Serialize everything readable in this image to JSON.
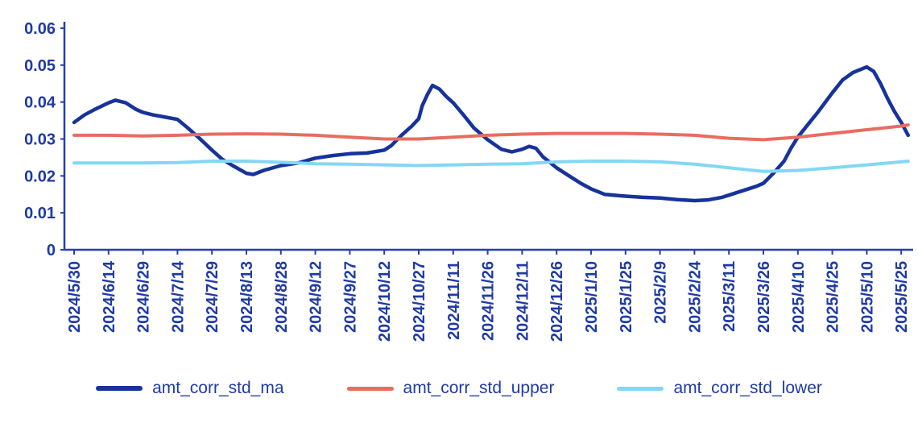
{
  "chart_data": {
    "type": "line",
    "title": "",
    "grid": false,
    "legend_position": "bottom",
    "axis_color": "#2440ad",
    "label_color": "#1f3aa6",
    "ylim": [
      0,
      0.06
    ],
    "y_ticks": [
      "0",
      "0.01",
      "0.02",
      "0.03",
      "0.04",
      "0.05",
      "0.06"
    ],
    "x_tick_labels": [
      "2024/5/30",
      "2024/6/14",
      "2024/6/29",
      "2024/7/14",
      "2024/7/29",
      "2024/8/13",
      "2024/8/28",
      "2024/9/12",
      "2024/9/27",
      "2024/10/12",
      "2024/10/27",
      "2024/11/11",
      "2024/11/26",
      "2024/12/11",
      "2024/12/26",
      "2025/1/10",
      "2025/1/25",
      "2025/2/9",
      "2025/2/24",
      "2025/3/11",
      "2025/3/26",
      "2025/4/10",
      "2025/4/25",
      "2025/5/10",
      "2025/5/25"
    ],
    "series": [
      {
        "name": "amt_corr_std_ma",
        "color": "#17339b",
        "width": 4.5,
        "points": [
          [
            0,
            0.0345
          ],
          [
            0.3,
            0.0365
          ],
          [
            0.6,
            0.038
          ],
          [
            1,
            0.0398
          ],
          [
            1.2,
            0.0405
          ],
          [
            1.5,
            0.0398
          ],
          [
            1.8,
            0.038
          ],
          [
            2,
            0.0372
          ],
          [
            2.3,
            0.0365
          ],
          [
            2.6,
            0.036
          ],
          [
            3,
            0.0353
          ],
          [
            3.3,
            0.033
          ],
          [
            3.6,
            0.0305
          ],
          [
            4,
            0.027
          ],
          [
            4.3,
            0.0245
          ],
          [
            4.6,
            0.0228
          ],
          [
            5,
            0.0207
          ],
          [
            5.2,
            0.0204
          ],
          [
            5.5,
            0.0215
          ],
          [
            6,
            0.0228
          ],
          [
            6.5,
            0.0235
          ],
          [
            7,
            0.0248
          ],
          [
            7.5,
            0.0255
          ],
          [
            8,
            0.026
          ],
          [
            8.5,
            0.0262
          ],
          [
            9,
            0.027
          ],
          [
            9.2,
            0.0282
          ],
          [
            9.5,
            0.031
          ],
          [
            9.8,
            0.0335
          ],
          [
            10,
            0.0355
          ],
          [
            10.1,
            0.039
          ],
          [
            10.25,
            0.042
          ],
          [
            10.4,
            0.0445
          ],
          [
            10.6,
            0.0435
          ],
          [
            10.8,
            0.0415
          ],
          [
            11,
            0.0398
          ],
          [
            11.3,
            0.0365
          ],
          [
            11.6,
            0.033
          ],
          [
            12,
            0.0298
          ],
          [
            12.4,
            0.0272
          ],
          [
            12.7,
            0.0265
          ],
          [
            13,
            0.0272
          ],
          [
            13.2,
            0.028
          ],
          [
            13.4,
            0.0275
          ],
          [
            13.6,
            0.0252
          ],
          [
            14,
            0.0222
          ],
          [
            14.4,
            0.0198
          ],
          [
            14.7,
            0.018
          ],
          [
            15,
            0.0165
          ],
          [
            15.4,
            0.015
          ],
          [
            16,
            0.0145
          ],
          [
            16.5,
            0.0142
          ],
          [
            17,
            0.014
          ],
          [
            17.5,
            0.0136
          ],
          [
            18,
            0.0133
          ],
          [
            18.4,
            0.0135
          ],
          [
            18.8,
            0.0142
          ],
          [
            19,
            0.0148
          ],
          [
            19.4,
            0.016
          ],
          [
            19.8,
            0.0172
          ],
          [
            20,
            0.018
          ],
          [
            20.3,
            0.0208
          ],
          [
            20.6,
            0.024
          ],
          [
            20.8,
            0.0275
          ],
          [
            21,
            0.0305
          ],
          [
            21.3,
            0.034
          ],
          [
            21.6,
            0.0375
          ],
          [
            22,
            0.0425
          ],
          [
            22.3,
            0.046
          ],
          [
            22.6,
            0.048
          ],
          [
            23,
            0.0495
          ],
          [
            23.2,
            0.0483
          ],
          [
            23.4,
            0.045
          ],
          [
            23.6,
            0.041
          ],
          [
            23.8,
            0.0375
          ],
          [
            24,
            0.0345
          ],
          [
            24.2,
            0.031
          ]
        ]
      },
      {
        "name": "amt_corr_std_upper",
        "color": "#e96c60",
        "width": 4,
        "points": [
          [
            0,
            0.031
          ],
          [
            1,
            0.031
          ],
          [
            2,
            0.0308
          ],
          [
            3,
            0.031
          ],
          [
            4,
            0.0313
          ],
          [
            5,
            0.0314
          ],
          [
            6,
            0.0313
          ],
          [
            7,
            0.031
          ],
          [
            8,
            0.0305
          ],
          [
            9,
            0.03
          ],
          [
            10,
            0.03
          ],
          [
            11,
            0.0305
          ],
          [
            12,
            0.031
          ],
          [
            13,
            0.0313
          ],
          [
            14,
            0.0315
          ],
          [
            15,
            0.0315
          ],
          [
            16,
            0.0315
          ],
          [
            17,
            0.0313
          ],
          [
            18,
            0.031
          ],
          [
            19,
            0.0302
          ],
          [
            20,
            0.0298
          ],
          [
            21,
            0.0305
          ],
          [
            22,
            0.0315
          ],
          [
            23,
            0.0325
          ],
          [
            24,
            0.0335
          ],
          [
            24.2,
            0.0338
          ]
        ]
      },
      {
        "name": "amt_corr_std_lower",
        "color": "#83d7f5",
        "width": 4,
        "points": [
          [
            0,
            0.0235
          ],
          [
            1,
            0.0235
          ],
          [
            2,
            0.0235
          ],
          [
            3,
            0.0236
          ],
          [
            4,
            0.024
          ],
          [
            5,
            0.024
          ],
          [
            6,
            0.0237
          ],
          [
            7,
            0.0233
          ],
          [
            8,
            0.0232
          ],
          [
            9,
            0.023
          ],
          [
            10,
            0.0228
          ],
          [
            11,
            0.023
          ],
          [
            12,
            0.0232
          ],
          [
            13,
            0.0233
          ],
          [
            14,
            0.0238
          ],
          [
            15,
            0.024
          ],
          [
            16,
            0.024
          ],
          [
            17,
            0.0238
          ],
          [
            18,
            0.0232
          ],
          [
            19,
            0.0222
          ],
          [
            20,
            0.0212
          ],
          [
            21,
            0.0215
          ],
          [
            22,
            0.0222
          ],
          [
            23,
            0.023
          ],
          [
            24,
            0.0238
          ],
          [
            24.2,
            0.024
          ]
        ]
      }
    ]
  }
}
